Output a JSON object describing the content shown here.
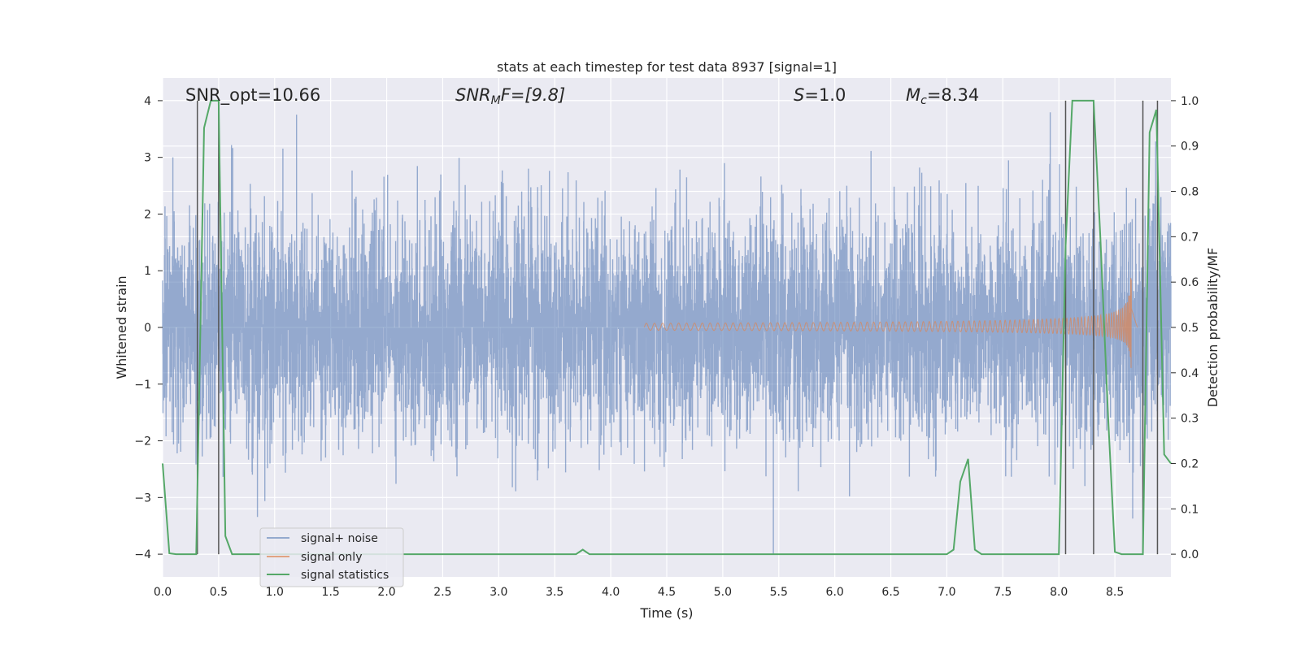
{
  "chart_data": {
    "type": "line",
    "title": "stats at each timestep for test data 8937 [signal=1]",
    "xlabel": "Time (s)",
    "ylabel": "Whitened strain",
    "y2label": "Detection probability/MF",
    "xlim": [
      0.0,
      9.0
    ],
    "ylim": [
      -4.4,
      4.4
    ],
    "y2lim": [
      -0.05,
      1.05
    ],
    "xticks": [
      "0.0",
      "0.5",
      "1.0",
      "1.5",
      "2.0",
      "2.5",
      "3.0",
      "3.5",
      "4.0",
      "4.5",
      "5.0",
      "5.5",
      "6.0",
      "6.5",
      "7.0",
      "7.5",
      "8.0",
      "8.5"
    ],
    "yticks": [
      "4",
      "3",
      "2",
      "1",
      "0",
      "−1",
      "−2",
      "−3",
      "−4"
    ],
    "y2ticks": [
      "1.0",
      "0.9",
      "0.8",
      "0.7",
      "0.6",
      "0.5",
      "0.4",
      "0.3",
      "0.2",
      "0.1",
      "0.0"
    ],
    "grid": true,
    "legend_position": "lower-left",
    "annotations": {
      "snr_opt": "SNR_opt=10.66",
      "snr_mf_prefix": "SNR",
      "snr_mf_sub": "M",
      "snr_mf_suffix": "F=[9.8]",
      "s_var": "S",
      "s_value": "=1.0",
      "mc_var": "M",
      "mc_sub": "c",
      "mc_value": "=8.34"
    },
    "series": [
      {
        "name": "signal+ noise",
        "color": "#4c72b0",
        "axis": "left",
        "envelope": {
          "typical_abs": 1.6,
          "max_abs": 4.0,
          "step_s": 0.0016
        }
      },
      {
        "name": "signal only",
        "color": "#dd8452",
        "axis": "left",
        "chirp": {
          "start_s": 4.3,
          "merger_s": 8.65,
          "end_s": 8.7,
          "peak_pos": 1.6,
          "peak_neg": -1.1
        }
      },
      {
        "name": "signal statistics",
        "color": "#55a868",
        "axis": "right",
        "points": [
          [
            0.0,
            0.2
          ],
          [
            0.06,
            0.002
          ],
          [
            0.12,
            0.0
          ],
          [
            0.3,
            0.0
          ],
          [
            0.3,
            0.0
          ],
          [
            0.37,
            0.94
          ],
          [
            0.43,
            1.0
          ],
          [
            0.5,
            1.0
          ],
          [
            0.56,
            0.04
          ],
          [
            0.62,
            0.0
          ],
          [
            0.69,
            0.0
          ],
          [
            0.75,
            0.0
          ],
          [
            1.0,
            0.0
          ],
          [
            2.0,
            0.0
          ],
          [
            3.0,
            0.0
          ],
          [
            3.6,
            0.0
          ],
          [
            3.69,
            0.0
          ],
          [
            3.75,
            0.01
          ],
          [
            3.81,
            0.0
          ],
          [
            4.5,
            0.0
          ],
          [
            5.5,
            0.0
          ],
          [
            6.5,
            0.0
          ],
          [
            7.0,
            0.0
          ],
          [
            7.06,
            0.01
          ],
          [
            7.12,
            0.16
          ],
          [
            7.19,
            0.21
          ],
          [
            7.25,
            0.01
          ],
          [
            7.31,
            0.0
          ],
          [
            7.5,
            0.0
          ],
          [
            8.0,
            0.0
          ],
          [
            8.0,
            0.0
          ],
          [
            8.06,
            0.68
          ],
          [
            8.12,
            1.0
          ],
          [
            8.25,
            1.0
          ],
          [
            8.31,
            1.0
          ],
          [
            8.37,
            0.7
          ],
          [
            8.44,
            0.3
          ],
          [
            8.5,
            0.005
          ],
          [
            8.56,
            0.0
          ],
          [
            8.62,
            0.0
          ],
          [
            8.69,
            0.0
          ],
          [
            8.75,
            0.0
          ],
          [
            8.81,
            0.93
          ],
          [
            8.87,
            0.98
          ],
          [
            8.94,
            0.22
          ],
          [
            9.0,
            0.2
          ]
        ]
      }
    ],
    "vertical_markers_s": [
      0.31,
      0.5,
      8.06,
      8.31,
      8.75,
      8.88
    ],
    "colors": {
      "plot_background": "#eaeaf2",
      "grid": "#ffffff",
      "marker_line": "#555555"
    }
  }
}
